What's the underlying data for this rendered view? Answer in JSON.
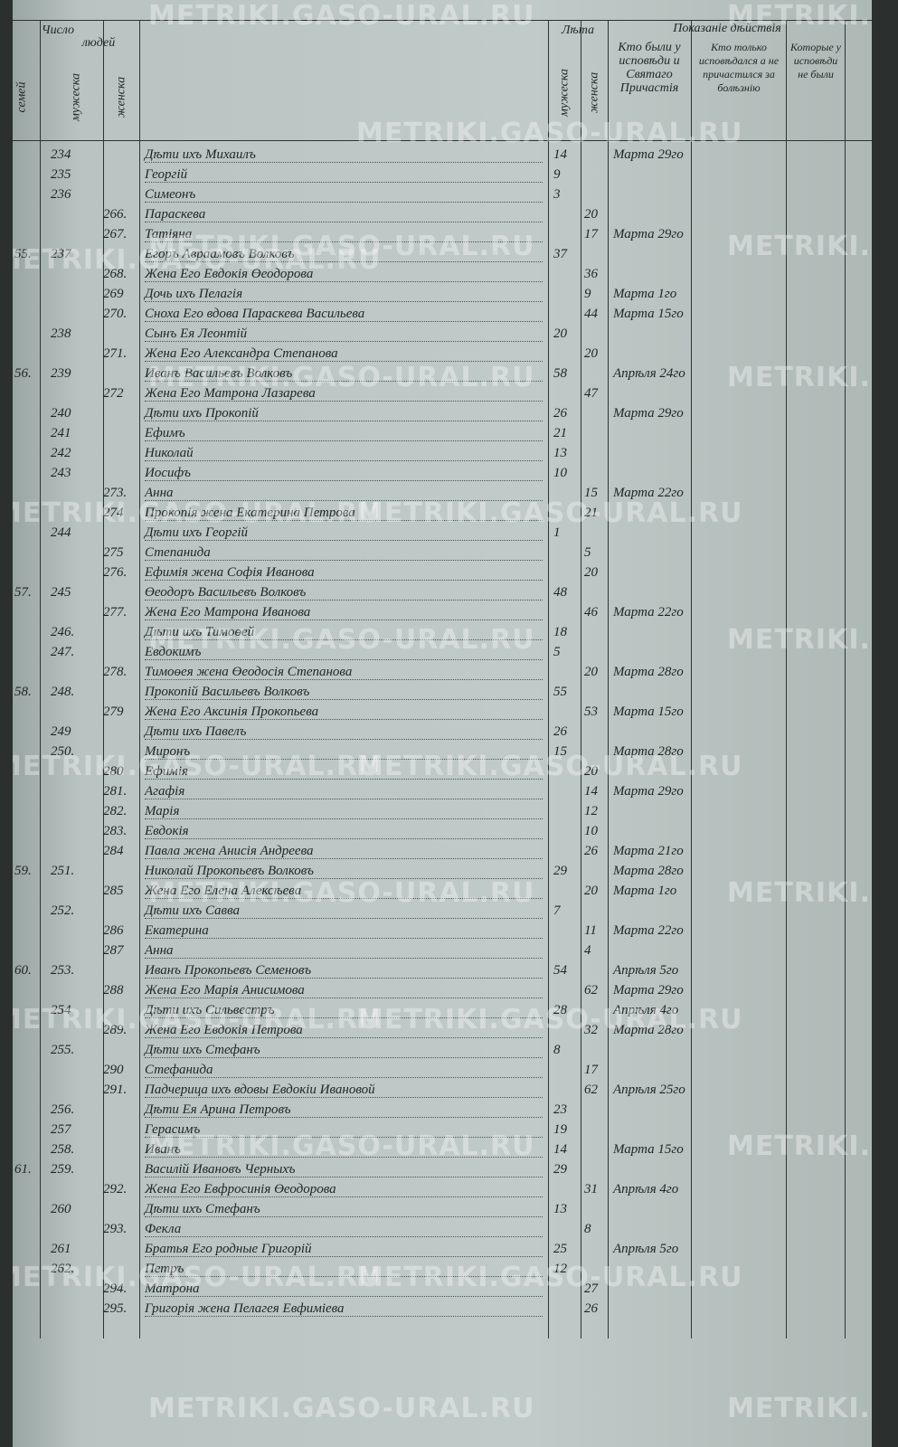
{
  "watermark": "METRIKI.GASO-URAL.RU",
  "header": {
    "number": "Число",
    "people": "людей",
    "families": "семей",
    "male": "мужеска",
    "female": "женска",
    "age": "Лѣта",
    "age_male": "мужеска",
    "age_female": "женска",
    "remarks": "Показаніе дѣйствія",
    "col_confessed": "Кто были у исповѣди и Святаго Причастія",
    "col_only_confessed": "Кто только исповѣдался а не причастился за болѣзнію",
    "col_absent": "Которые у исповѣди не были"
  },
  "rows": [
    {
      "m": "234",
      "name": "Дѣти ихъ Михаилъ",
      "age_m": "14",
      "note": "Марта 29го"
    },
    {
      "m": "235",
      "name": "Георгій",
      "age_m": "9"
    },
    {
      "m": "236",
      "name": "Симеонъ",
      "age_m": "3"
    },
    {
      "f": "266.",
      "name": "Параскева",
      "age_f": "20"
    },
    {
      "f": "267.",
      "name": "Татіяна",
      "age_f": "17",
      "note": "Марта 29го"
    },
    {
      "fam": "55.",
      "m": "237",
      "name": "Егоръ Авраамовъ Волковъ",
      "age_m": "37"
    },
    {
      "f": "268.",
      "name": "Жена Его Евдокія Өеодорова",
      "age_f": "36"
    },
    {
      "f": "269",
      "name": "Дочь ихъ Пелагія",
      "age_f": "9",
      "note": "Марта 1го"
    },
    {
      "f": "270.",
      "name": "Сноха Его вдова Параскева Васильева",
      "age_f": "44",
      "note": "Марта 15го"
    },
    {
      "m": "238",
      "name": "Сынъ Ея Леонтій",
      "age_m": "20"
    },
    {
      "f": "271.",
      "name": "Жена Его Александра Степанова",
      "age_f": "20"
    },
    {
      "fam": "56.",
      "m": "239",
      "name": "Иванъ Васильевъ Волковъ",
      "age_m": "58",
      "note": "Апрѣля 24го"
    },
    {
      "f": "272",
      "name": "Жена Его Матрона Лазарева",
      "age_f": "47"
    },
    {
      "m": "240",
      "name": "Дѣти ихъ Прокопій",
      "age_m": "26",
      "note": "Марта 29го"
    },
    {
      "m": "241",
      "name": "Ефимъ",
      "age_m": "21"
    },
    {
      "m": "242",
      "name": "Николай",
      "age_m": "13"
    },
    {
      "m": "243",
      "name": "Иосифъ",
      "age_m": "10"
    },
    {
      "f": "273.",
      "name": "Анна",
      "age_f": "15",
      "note": "Марта 22го"
    },
    {
      "f": "274",
      "name": "Прокопія жена Екатерина Петрова",
      "age_f": "21"
    },
    {
      "m": "244",
      "name": "Дѣти ихъ Георгій",
      "age_m": "1"
    },
    {
      "f": "275",
      "name": "Степанида",
      "age_f": "5"
    },
    {
      "f": "276.",
      "name": "Ефимія жена Софія Иванова",
      "age_f": "20"
    },
    {
      "fam": "57.",
      "m": "245",
      "name": "Өеодоръ Васильевъ Волковъ",
      "age_m": "48"
    },
    {
      "f": "277.",
      "name": "Жена Его Матрона Иванова",
      "age_f": "46",
      "note": "Марта 22го"
    },
    {
      "m": "246.",
      "name": "Дѣти ихъ Тимоөей",
      "age_m": "18"
    },
    {
      "m": "247.",
      "name": "Евдокимъ",
      "age_m": "5"
    },
    {
      "f": "278.",
      "name": "Тимоөея жена Өеодосія Степанова",
      "age_f": "20",
      "note": "Марта 28го"
    },
    {
      "fam": "58.",
      "m": "248.",
      "name": "Прокопій Васильевъ Волковъ",
      "age_m": "55"
    },
    {
      "f": "279",
      "name": "Жена Его Аксинія Прокопьева",
      "age_f": "53",
      "note": "Марта 15го"
    },
    {
      "m": "249",
      "name": "Дѣти ихъ Павелъ",
      "age_m": "26"
    },
    {
      "m": "250.",
      "name": "Миронъ",
      "age_m": "15",
      "note": "Марта 28го"
    },
    {
      "f": "280",
      "name": "Ефимія",
      "age_f": "20"
    },
    {
      "f": "281.",
      "name": "Агафія",
      "age_f": "14",
      "note": "Марта 29го"
    },
    {
      "f": "282.",
      "name": "Марія",
      "age_f": "12"
    },
    {
      "f": "283.",
      "name": "Евдокія",
      "age_f": "10"
    },
    {
      "f": "284",
      "name": "Павла жена Анисія Андреева",
      "age_f": "26",
      "note": "Марта 21го"
    },
    {
      "fam": "59.",
      "m": "251.",
      "name": "Николай Прокопьевъ Волковъ",
      "age_m": "29",
      "note": "Марта 28го"
    },
    {
      "f": "285",
      "name": "Жена Его Елена Алексѣева",
      "age_f": "20",
      "note": "Марта 1го"
    },
    {
      "m": "252.",
      "name": "Дѣти ихъ Савва",
      "age_m": "7"
    },
    {
      "f": "286",
      "name": "Екатерина",
      "age_f": "11",
      "note": "Марта 22го"
    },
    {
      "f": "287",
      "name": "Анна",
      "age_f": "4"
    },
    {
      "fam": "60.",
      "m": "253.",
      "name": "Иванъ Прокопьевъ Семеновъ",
      "age_m": "54",
      "note": "Апрѣля 5го"
    },
    {
      "f": "288",
      "name": "Жена Его Марія Анисимова",
      "age_f": "62",
      "note": "Марта 29го"
    },
    {
      "m": "254",
      "name": "Дѣти ихъ Сильвестръ",
      "age_m": "28",
      "note": "Апрѣля 4го"
    },
    {
      "f": "289.",
      "name": "Жена Его Евдокія Петрова",
      "age_f": "32",
      "note": "Марта 28го"
    },
    {
      "m": "255.",
      "name": "Дѣти ихъ Стефанъ",
      "age_m": "8"
    },
    {
      "f": "290",
      "name": "Стефанида",
      "age_f": "17"
    },
    {
      "f": "291.",
      "name": "Падчерица ихъ вдовы Евдокіи Ивановой",
      "age_f": "62",
      "note": "Апрѣля 25го"
    },
    {
      "m": "256.",
      "name": "Дѣти Ея Арина Петровъ",
      "age_m": "23"
    },
    {
      "m": "257",
      "name": "Герасимъ",
      "age_m": "19"
    },
    {
      "m": "258.",
      "name": "Иванъ",
      "age_m": "14",
      "note": "Марта 15го"
    },
    {
      "fam": "61.",
      "m": "259.",
      "name": "Василій Ивановъ Черныхъ",
      "age_m": "29"
    },
    {
      "f": "292.",
      "name": "Жена Его Евфросинія Өеодорова",
      "age_f": "31",
      "note": "Апрѣля 4го"
    },
    {
      "m": "260",
      "name": "Дѣти ихъ Стефанъ",
      "age_m": "13"
    },
    {
      "f": "293.",
      "name": "Фекла",
      "age_f": "8"
    },
    {
      "m": "261",
      "name": "Братья Его родные Григорій",
      "age_m": "25",
      "note": "Апрѣля 5го"
    },
    {
      "m": "262.",
      "name": "Петръ",
      "age_m": "12"
    },
    {
      "f": "294.",
      "name": "Матрона",
      "age_f": "27"
    },
    {
      "f": "295.",
      "name": "Григорія жена Пелагея Евфимiева",
      "age_f": "26"
    }
  ]
}
